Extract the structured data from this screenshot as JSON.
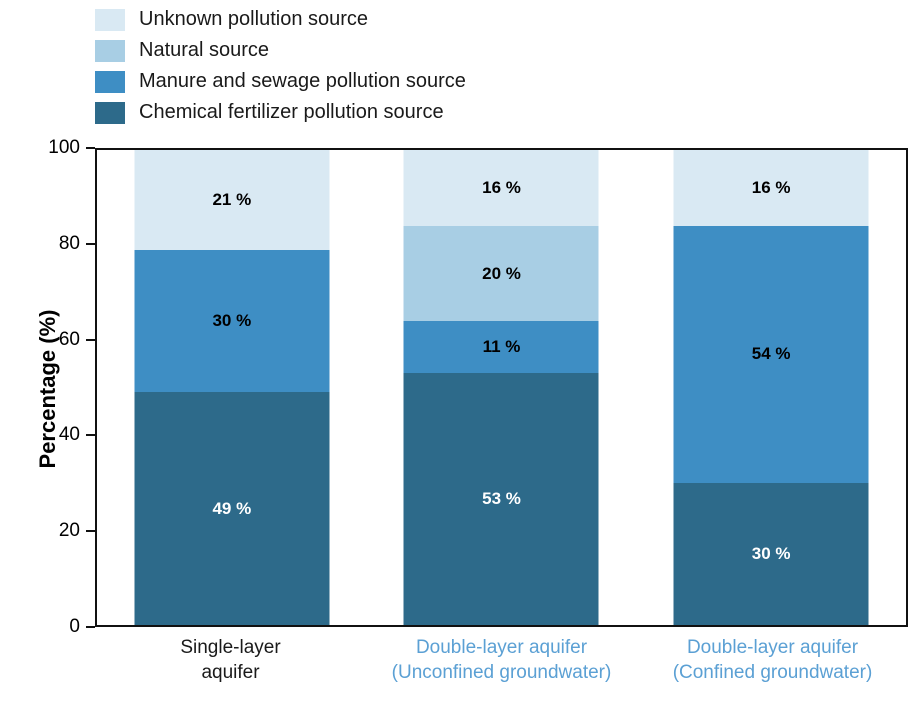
{
  "chart_data": {
    "type": "bar",
    "stacked": true,
    "title": "",
    "ylabel": "Percentage (%)",
    "ylim": [
      0,
      100
    ],
    "yticks": [
      0,
      20,
      40,
      60,
      80,
      100
    ],
    "label_format": "{v} %",
    "grid": false,
    "legend_position": "top-left",
    "legend_order": "reversed",
    "categories": [
      {
        "lines": [
          "Single-layer",
          "aquifer"
        ],
        "color": "#1a1a1a"
      },
      {
        "lines": [
          "Double-layer aquifer",
          "(Unconfined groundwater)"
        ],
        "color": "#5ba0d4"
      },
      {
        "lines": [
          "Double-layer aquifer",
          "(Confined groundwater)"
        ],
        "color": "#5ba0d4"
      }
    ],
    "series": [
      {
        "name": "Chemical fertilizer pollution source",
        "color": "#2d6a8a",
        "label_color": "#ffffff",
        "values": [
          49,
          53,
          30
        ]
      },
      {
        "name": "Manure and sewage pollution source",
        "color": "#3e8ec4",
        "label_color": "#000000",
        "values": [
          30,
          11,
          54
        ]
      },
      {
        "name": "Natural source",
        "color": "#a8cee4",
        "label_color": "#000000",
        "values": [
          0,
          20,
          0
        ]
      },
      {
        "name": "Unknown pollution source",
        "color": "#d9e9f3",
        "label_color": "#000000",
        "values": [
          21,
          16,
          16
        ]
      }
    ]
  }
}
